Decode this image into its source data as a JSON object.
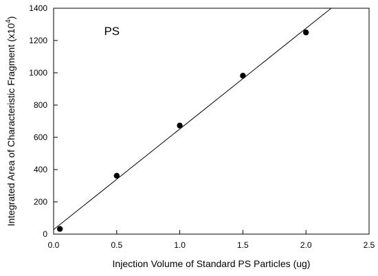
{
  "chart_data": {
    "type": "scatter",
    "annotation": "PS",
    "xlabel": "Injection Volume of Standard PS Particles (ug)",
    "ylabel_main": "Integrated Area of Characteristic Fragment (x10",
    "ylabel_sup": "4",
    "ylabel_close": ")",
    "xlim": [
      0.0,
      2.5
    ],
    "ylim": [
      0,
      1400
    ],
    "xticks": [
      "0.0",
      "0.5",
      "1.0",
      "1.5",
      "2.0",
      "2.5"
    ],
    "yticks": [
      "0",
      "200",
      "400",
      "600",
      "800",
      "1000",
      "1200",
      "1400"
    ],
    "points": [
      {
        "x": 0.05,
        "y": 32
      },
      {
        "x": 0.5,
        "y": 362
      },
      {
        "x": 1.0,
        "y": 673
      },
      {
        "x": 1.5,
        "y": 982
      },
      {
        "x": 2.0,
        "y": 1250
      }
    ],
    "fit_line": {
      "x_start": 0.0,
      "y_start": 28,
      "x_end": 2.2,
      "y_end": 1400
    },
    "grid": false,
    "legend": "none"
  }
}
